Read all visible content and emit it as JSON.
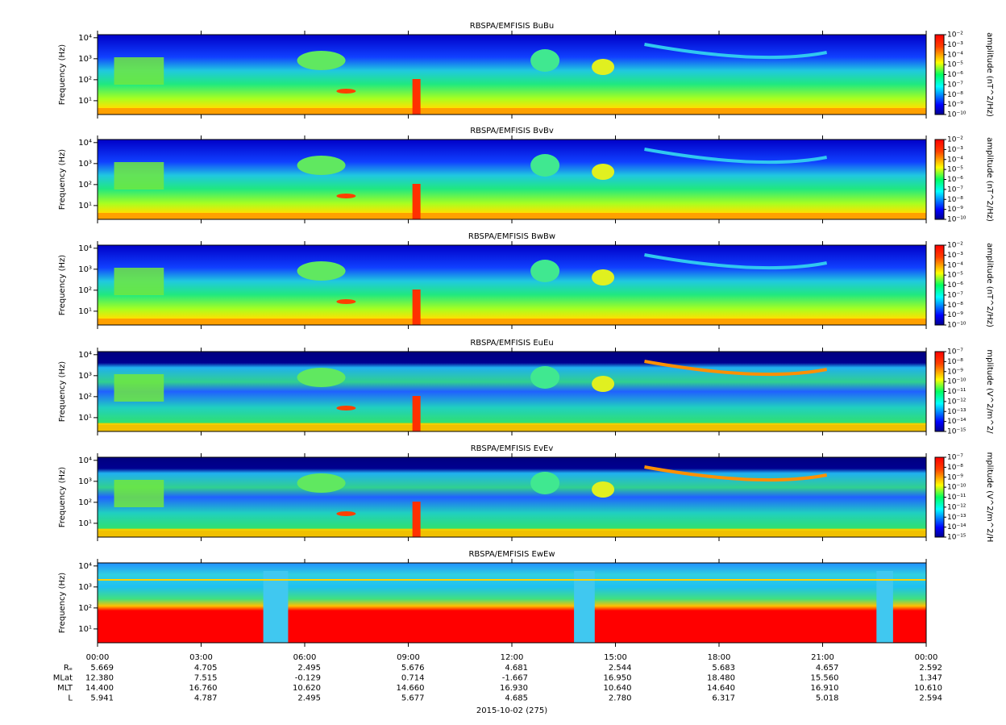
{
  "chart_data": [
    {
      "type": "spectrogram",
      "title": "RBSPA/EMFISIS  BuBu",
      "ylabel": "Frequency (Hz)",
      "yscale": "log",
      "ylim": [
        2.2,
        14000
      ],
      "yticks": [
        {
          "value": 10,
          "label": "10¹"
        },
        {
          "value": 100,
          "label": "10²"
        },
        {
          "value": 1000,
          "label": "10³"
        },
        {
          "value": 10000,
          "label": "10⁴"
        }
      ],
      "xlim": [
        0,
        24
      ],
      "zscale": "log",
      "zlim": [
        1e-10,
        0.01
      ],
      "zlabel": "amplitude (nT^2/Hz)",
      "zticks": [
        {
          "value": 1e-10,
          "label": "10⁻¹⁰"
        },
        {
          "value": 1e-09,
          "label": "10⁻⁹"
        },
        {
          "value": 1e-08,
          "label": "10⁻⁸"
        },
        {
          "value": 1e-07,
          "label": "10⁻⁷"
        },
        {
          "value": 1e-06,
          "label": "10⁻⁶"
        },
        {
          "value": 1e-05,
          "label": "10⁻⁵"
        },
        {
          "value": 0.0001,
          "label": "10⁻⁴"
        },
        {
          "value": 0.001,
          "label": "10⁻³"
        },
        {
          "value": 0.01,
          "label": "10⁻²"
        }
      ]
    },
    {
      "type": "spectrogram",
      "title": "RBSPA/EMFISIS  BvBv",
      "ylabel": "Frequency (Hz)",
      "yscale": "log",
      "ylim": [
        2.2,
        14000
      ],
      "yticks": [
        {
          "value": 10,
          "label": "10¹"
        },
        {
          "value": 100,
          "label": "10²"
        },
        {
          "value": 1000,
          "label": "10³"
        },
        {
          "value": 10000,
          "label": "10⁴"
        }
      ],
      "xlim": [
        0,
        24
      ],
      "zscale": "log",
      "zlim": [
        1e-10,
        0.01
      ],
      "zlabel": "amplitude (nT^2/Hz)",
      "zticks": [
        {
          "value": 1e-10,
          "label": "10⁻¹⁰"
        },
        {
          "value": 1e-09,
          "label": "10⁻⁹"
        },
        {
          "value": 1e-08,
          "label": "10⁻⁸"
        },
        {
          "value": 1e-07,
          "label": "10⁻⁷"
        },
        {
          "value": 1e-06,
          "label": "10⁻⁶"
        },
        {
          "value": 1e-05,
          "label": "10⁻⁵"
        },
        {
          "value": 0.0001,
          "label": "10⁻⁴"
        },
        {
          "value": 0.001,
          "label": "10⁻³"
        },
        {
          "value": 0.01,
          "label": "10⁻²"
        }
      ]
    },
    {
      "type": "spectrogram",
      "title": "RBSPA/EMFISIS  BwBw",
      "ylabel": "Frequency (Hz)",
      "yscale": "log",
      "ylim": [
        2.2,
        14000
      ],
      "yticks": [
        {
          "value": 10,
          "label": "10¹"
        },
        {
          "value": 100,
          "label": "10²"
        },
        {
          "value": 1000,
          "label": "10³"
        },
        {
          "value": 10000,
          "label": "10⁴"
        }
      ],
      "xlim": [
        0,
        24
      ],
      "zscale": "log",
      "zlim": [
        1e-10,
        0.01
      ],
      "zlabel": "amplitude (nT^2/Hz)",
      "zticks": [
        {
          "value": 1e-10,
          "label": "10⁻¹⁰"
        },
        {
          "value": 1e-09,
          "label": "10⁻⁹"
        },
        {
          "value": 1e-08,
          "label": "10⁻⁸"
        },
        {
          "value": 1e-07,
          "label": "10⁻⁷"
        },
        {
          "value": 1e-06,
          "label": "10⁻⁶"
        },
        {
          "value": 1e-05,
          "label": "10⁻⁵"
        },
        {
          "value": 0.0001,
          "label": "10⁻⁴"
        },
        {
          "value": 0.001,
          "label": "10⁻³"
        },
        {
          "value": 0.01,
          "label": "10⁻²"
        }
      ]
    },
    {
      "type": "spectrogram",
      "title": "RBSPA/EMFISIS  EuEu",
      "ylabel": "Frequency (Hz)",
      "yscale": "log",
      "ylim": [
        2.2,
        14000
      ],
      "yticks": [
        {
          "value": 10,
          "label": "10¹"
        },
        {
          "value": 100,
          "label": "10²"
        },
        {
          "value": 1000,
          "label": "10³"
        },
        {
          "value": 10000,
          "label": "10⁴"
        }
      ],
      "xlim": [
        0,
        24
      ],
      "zscale": "log",
      "zlim": [
        1e-15,
        1e-07
      ],
      "zlabel": "mplitude (V^2/m^2/",
      "zticks": [
        {
          "value": 1e-15,
          "label": "10⁻¹⁵"
        },
        {
          "value": 1e-14,
          "label": "10⁻¹⁴"
        },
        {
          "value": 1e-13,
          "label": "10⁻¹³"
        },
        {
          "value": 1e-12,
          "label": "10⁻¹²"
        },
        {
          "value": 1e-11,
          "label": "10⁻¹¹"
        },
        {
          "value": 1e-10,
          "label": "10⁻¹⁰"
        },
        {
          "value": 1e-09,
          "label": "10⁻⁹"
        },
        {
          "value": 1e-08,
          "label": "10⁻⁸"
        },
        {
          "value": 1e-07,
          "label": "10⁻⁷"
        }
      ]
    },
    {
      "type": "spectrogram",
      "title": "RBSPA/EMFISIS  EvEv",
      "ylabel": "Frequency (Hz)",
      "yscale": "log",
      "ylim": [
        2.2,
        14000
      ],
      "yticks": [
        {
          "value": 10,
          "label": "10¹"
        },
        {
          "value": 100,
          "label": "10²"
        },
        {
          "value": 1000,
          "label": "10³"
        },
        {
          "value": 10000,
          "label": "10⁴"
        }
      ],
      "xlim": [
        0,
        24
      ],
      "zscale": "log",
      "zlim": [
        1e-15,
        1e-07
      ],
      "zlabel": "mplitude (V^2/m^2/H",
      "zticks": [
        {
          "value": 1e-15,
          "label": "10⁻¹⁵"
        },
        {
          "value": 1e-14,
          "label": "10⁻¹⁴"
        },
        {
          "value": 1e-13,
          "label": "10⁻¹³"
        },
        {
          "value": 1e-12,
          "label": "10⁻¹²"
        },
        {
          "value": 1e-11,
          "label": "10⁻¹¹"
        },
        {
          "value": 1e-10,
          "label": "10⁻¹⁰"
        },
        {
          "value": 1e-09,
          "label": "10⁻⁹"
        },
        {
          "value": 1e-08,
          "label": "10⁻⁸"
        },
        {
          "value": 1e-07,
          "label": "10⁻⁷"
        }
      ]
    },
    {
      "type": "spectrogram",
      "title": "RBSPA/EMFISIS  EwEw",
      "ylabel": "Frequency (Hz)",
      "yscale": "log",
      "ylim": [
        2.2,
        14000
      ],
      "yticks": [
        {
          "value": 10,
          "label": "10¹"
        },
        {
          "value": 100,
          "label": "10²"
        },
        {
          "value": 1000,
          "label": "10³"
        },
        {
          "value": 10000,
          "label": "10⁴"
        }
      ],
      "xlim": [
        0,
        24
      ],
      "xticks": [
        {
          "value": 0,
          "label": "00:00"
        },
        {
          "value": 3,
          "label": "03:00"
        },
        {
          "value": 6,
          "label": "06:00"
        },
        {
          "value": 9,
          "label": "09:00"
        },
        {
          "value": 12,
          "label": "12:00"
        },
        {
          "value": 15,
          "label": "15:00"
        },
        {
          "value": 18,
          "label": "18:00"
        },
        {
          "value": 21,
          "label": "21:00"
        },
        {
          "value": 24,
          "label": "00:00"
        }
      ]
    }
  ],
  "ephemeris": {
    "rows": [
      {
        "label": "Rₑ",
        "values": [
          "5.669",
          "4.705",
          "2.495",
          "5.676",
          "4.681",
          "2.544",
          "5.683",
          "4.657",
          "2.592"
        ]
      },
      {
        "label": "MLat",
        "values": [
          "12.380",
          "7.515",
          "-0.129",
          "0.714",
          "-1.667",
          "16.950",
          "18.480",
          "15.560",
          "1.347"
        ]
      },
      {
        "label": "MLT",
        "values": [
          "14.400",
          "16.760",
          "10.620",
          "14.660",
          "16.930",
          "10.640",
          "14.640",
          "16.910",
          "10.610"
        ]
      },
      {
        "label": "L",
        "values": [
          "5.941",
          "4.787",
          "2.495",
          "5.677",
          "4.685",
          "2.780",
          "6.317",
          "5.018",
          "2.594"
        ]
      }
    ]
  },
  "date": "2015-10-02 (275)"
}
